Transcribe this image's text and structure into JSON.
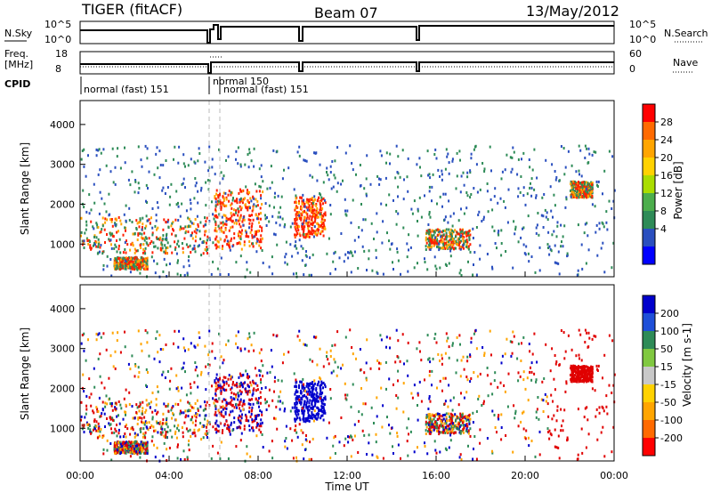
{
  "header": {
    "station": "TIGER (fitACF)",
    "beam": "Beam 07",
    "date": "13/May/2012"
  },
  "panels": {
    "nsky_label": "N.Sky",
    "nsearch_label": "N.Search",
    "nsky_ticks": [
      "10^5",
      "10^0"
    ],
    "nsearch_ticks": [
      "10^5",
      "10^0"
    ],
    "freq_label_1": "Freq.",
    "freq_label_2": "[MHz]",
    "freq_ticks": [
      "18",
      "8"
    ],
    "nave_label": "Nave",
    "nave_ticks": [
      "60",
      "0"
    ],
    "cpid_label": "CPID",
    "cpid_modes": [
      "normal (fast) 151",
      "normal 150",
      "normal (fast) 151"
    ]
  },
  "chart_data": [
    {
      "type": "heatmap",
      "name": "Power",
      "ylabel": "Slant Range [km]",
      "yticks": [
        "4000",
        "3000",
        "2000",
        "1000"
      ],
      "ylim": [
        180,
        4600
      ],
      "xlim": [
        0,
        24
      ],
      "colorbar_label": "Power [dB]",
      "colorbar_ticks": [
        "28",
        "24",
        "20",
        "16",
        "12",
        "8",
        "4"
      ],
      "colorbar_colors": [
        "#ff0000",
        "#ff6a00",
        "#ffa500",
        "#ffd200",
        "#aadd00",
        "#4cae4c",
        "#2e8b57",
        "#2a4fbf",
        "#0000ff"
      ],
      "echo_regions": [
        {
          "t": [
            0.0,
            5.8
          ],
          "range": [
            800,
            1700
          ],
          "power": "high"
        },
        {
          "t": [
            1.5,
            3.0
          ],
          "range": [
            400,
            700
          ],
          "power": "high"
        },
        {
          "t": [
            6.0,
            8.2
          ],
          "range": [
            900,
            2400
          ],
          "power": "very high"
        },
        {
          "t": [
            9.6,
            11.0
          ],
          "range": [
            1200,
            2200
          ],
          "power": "very high"
        },
        {
          "t": [
            15.5,
            17.5
          ],
          "range": [
            900,
            1400
          ],
          "power": "high"
        },
        {
          "t": [
            22.0,
            23.0
          ],
          "range": [
            2200,
            2600
          ],
          "power": "high"
        },
        {
          "t": [
            0.0,
            24.0
          ],
          "range": [
            200,
            3500
          ],
          "power": "scattered low"
        }
      ]
    },
    {
      "type": "heatmap",
      "name": "Velocity",
      "ylabel": "Slant Range [km]",
      "yticks": [
        "4000",
        "3000",
        "2000",
        "1000"
      ],
      "ylim": [
        180,
        4600
      ],
      "xlim": [
        0,
        24
      ],
      "colorbar_label": "Velocity [m s-1]",
      "colorbar_ticks": [
        "200",
        "100",
        "50",
        "15",
        "-15",
        "-50",
        "-100",
        "-200"
      ],
      "colorbar_colors": [
        "#0000cc",
        "#1e4fd8",
        "#2e8b57",
        "#80c840",
        "#c8c8c8",
        "#ffd200",
        "#ffa500",
        "#ff6a00",
        "#ff0000"
      ],
      "xlabel": "Time UT",
      "xticks": [
        "00:00",
        "04:00",
        "08:00",
        "12:00",
        "16:00",
        "20:00",
        "00:00"
      ]
    }
  ],
  "colors": {
    "power_high": "#ff2000",
    "power_mid": "#ffa500",
    "power_low": "#2e8b57",
    "velocity_pos": "#0000cc",
    "velocity_neg": "#e00000"
  }
}
